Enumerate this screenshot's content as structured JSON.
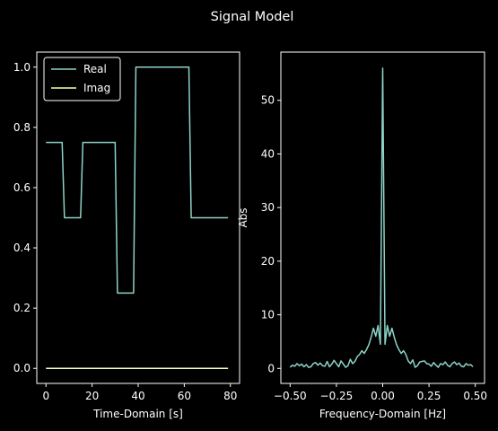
{
  "figure": {
    "title": "Signal Model",
    "background": "#000000",
    "foreground": "#ffffff"
  },
  "chart_data": [
    {
      "type": "line",
      "xlabel": "Time-Domain [s]",
      "ylabel": "",
      "xlim": [
        -4,
        84
      ],
      "ylim": [
        -0.05,
        1.05
      ],
      "xticks": [
        0,
        20,
        40,
        60,
        80
      ],
      "xtick_labels": [
        "0",
        "20",
        "40",
        "60",
        "80"
      ],
      "yticks": [
        0.0,
        0.2,
        0.4,
        0.6,
        0.8,
        1.0
      ],
      "ytick_labels": [
        "0.0",
        "0.2",
        "0.4",
        "0.6",
        "0.8",
        "1.0"
      ],
      "legend": {
        "position": "upper-left"
      },
      "series": [
        {
          "name": "Real",
          "color": "#8dd3c7",
          "x": [
            0,
            7,
            8,
            15,
            16,
            30,
            31,
            38,
            39,
            62,
            63,
            79
          ],
          "y": [
            0.75,
            0.75,
            0.5,
            0.5,
            0.75,
            0.75,
            0.25,
            0.25,
            1.0,
            1.0,
            0.5,
            0.5
          ]
        },
        {
          "name": "Imag",
          "color": "#feffb3",
          "x": [
            0,
            79
          ],
          "y": [
            0.0,
            0.0
          ]
        }
      ]
    },
    {
      "type": "line",
      "xlabel": "Frequency-Domain [Hz]",
      "ylabel": "Abs",
      "xlim": [
        -0.55,
        0.55
      ],
      "ylim": [
        -2.8,
        59
      ],
      "xticks": [
        -0.5,
        -0.25,
        0.0,
        0.25,
        0.5
      ],
      "xtick_labels": [
        "−0.50",
        "−0.25",
        "0.00",
        "0.25",
        "0.50"
      ],
      "yticks": [
        0,
        10,
        20,
        30,
        40,
        50
      ],
      "ytick_labels": [
        "0",
        "10",
        "20",
        "30",
        "40",
        "50"
      ],
      "series": [
        {
          "color": "#8dd3c7",
          "x": [
            -0.5,
            -0.4875,
            -0.475,
            -0.4625,
            -0.45,
            -0.4375,
            -0.425,
            -0.4125,
            -0.4,
            -0.3875,
            -0.375,
            -0.3625,
            -0.35,
            -0.3375,
            -0.325,
            -0.3125,
            -0.3,
            -0.2875,
            -0.275,
            -0.2625,
            -0.25,
            -0.2375,
            -0.225,
            -0.2125,
            -0.2,
            -0.1875,
            -0.175,
            -0.1625,
            -0.15,
            -0.1375,
            -0.125,
            -0.1125,
            -0.1,
            -0.0875,
            -0.075,
            -0.0625,
            -0.05,
            -0.0375,
            -0.025,
            -0.0125,
            0.0,
            0.0125,
            0.025,
            0.0375,
            0.05,
            0.0625,
            0.075,
            0.0875,
            0.1,
            0.1125,
            0.125,
            0.1375,
            0.15,
            0.1625,
            0.175,
            0.1875,
            0.2,
            0.2125,
            0.225,
            0.2375,
            0.25,
            0.2625,
            0.275,
            0.2875,
            0.3,
            0.3125,
            0.325,
            0.3375,
            0.35,
            0.3625,
            0.375,
            0.3875,
            0.4,
            0.4125,
            0.425,
            0.4375,
            0.45,
            0.4625,
            0.475,
            0.4875
          ],
          "y": [
            0.2,
            0.6,
            0.4,
            0.9,
            0.5,
            0.8,
            0.3,
            0.7,
            0.2,
            0.3,
            0.9,
            1.1,
            0.6,
            1.0,
            0.5,
            0.4,
            1.3,
            0.3,
            0.8,
            1.5,
            0.9,
            0.3,
            1.4,
            0.8,
            0.2,
            0.5,
            1.7,
            0.9,
            1.3,
            2.2,
            2.6,
            3.3,
            2.8,
            3.5,
            4.4,
            5.8,
            7.5,
            6.0,
            8.0,
            4.5,
            56.0,
            4.5,
            8.0,
            6.0,
            7.5,
            5.8,
            4.4,
            3.5,
            2.8,
            3.3,
            2.6,
            1.4,
            0.9,
            1.6,
            0.2,
            0.5,
            1.2,
            1.3,
            1.4,
            0.9,
            0.8,
            0.4,
            1.1,
            0.6,
            0.2,
            0.9,
            0.7,
            1.2,
            0.6,
            0.3,
            0.9,
            1.2,
            0.7,
            1.0,
            0.4,
            0.3,
            0.9,
            0.6,
            0.7,
            0.3
          ]
        }
      ]
    }
  ]
}
